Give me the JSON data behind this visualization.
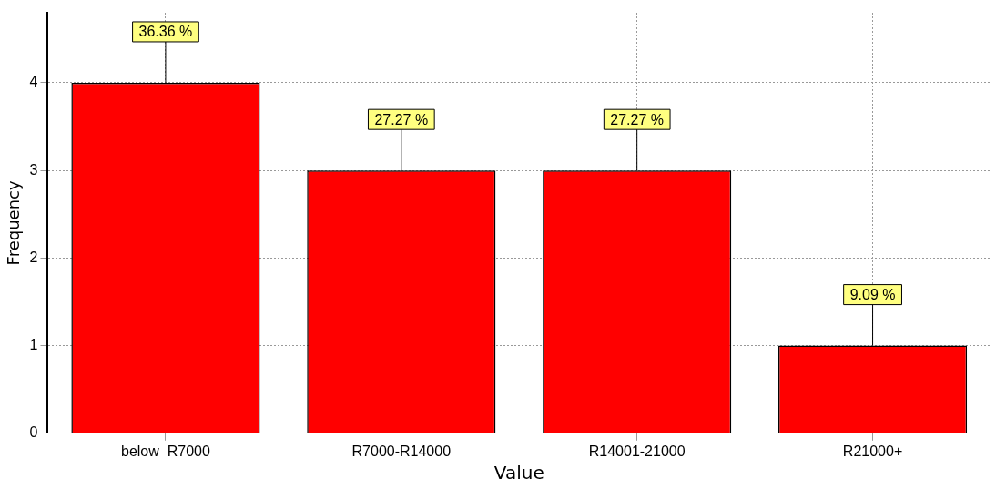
{
  "chart_data": {
    "type": "bar",
    "xlabel": "Value",
    "ylabel": "Frequency",
    "categories": [
      "below  R7000",
      "R7000-R14000",
      "R14001-21000",
      "R21000+"
    ],
    "values": [
      4,
      3,
      3,
      1
    ],
    "color": "#ff0000",
    "annotations": [
      {
        "text": "36.36 %",
        "x": "below  R7000",
        "y": 4
      },
      {
        "text": "27.27 %",
        "x": "R7000-R14000",
        "y": 3
      },
      {
        "text": "27.27 %",
        "x": "R14001-21000",
        "y": 3
      },
      {
        "text": "9.09 %",
        "x": "R21000+",
        "y": 1
      }
    ],
    "ylim": [
      0,
      4.8
    ],
    "yticks": [
      0,
      1,
      2,
      3,
      4
    ],
    "grid": true
  }
}
